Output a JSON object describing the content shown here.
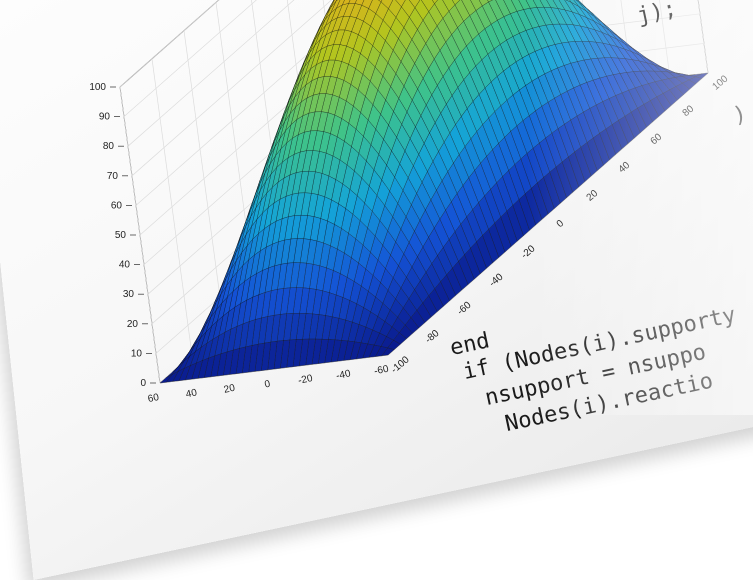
{
  "code": {
    "lines": [
      "j);",
      ")",
      "end",
      "if (Nodes(i).supporty",
      "nsupport = nsuppo",
      "Nodes(i).reactio"
    ]
  },
  "chart_data": {
    "type": "surface",
    "title": "",
    "xlabel": "",
    "ylabel": "",
    "zlabel": "",
    "x_ticks": [
      "60",
      "40",
      "20",
      "0",
      "-20",
      "-40",
      "-60"
    ],
    "y_ticks": [
      "-100",
      "-80",
      "-60",
      "-40",
      "-20",
      "0",
      "20",
      "40",
      "60",
      "80",
      "100"
    ],
    "z_ticks": [
      "0",
      "10",
      "20",
      "30",
      "40",
      "50",
      "60",
      "70",
      "80",
      "90",
      "100"
    ],
    "xlim": [
      -60,
      60
    ],
    "ylim": [
      -100,
      100
    ],
    "zlim": [
      0,
      100
    ],
    "surface": "z = 100 * (1 - (x/60)^2) * (1 - (y/100)^2)",
    "peak_z": 100,
    "colormap": [
      "#0a1a8c",
      "#1453d6",
      "#14a3d8",
      "#3ec38a",
      "#b3c51e",
      "#f0a81c"
    ],
    "grid": true,
    "mesh_edges": true
  }
}
